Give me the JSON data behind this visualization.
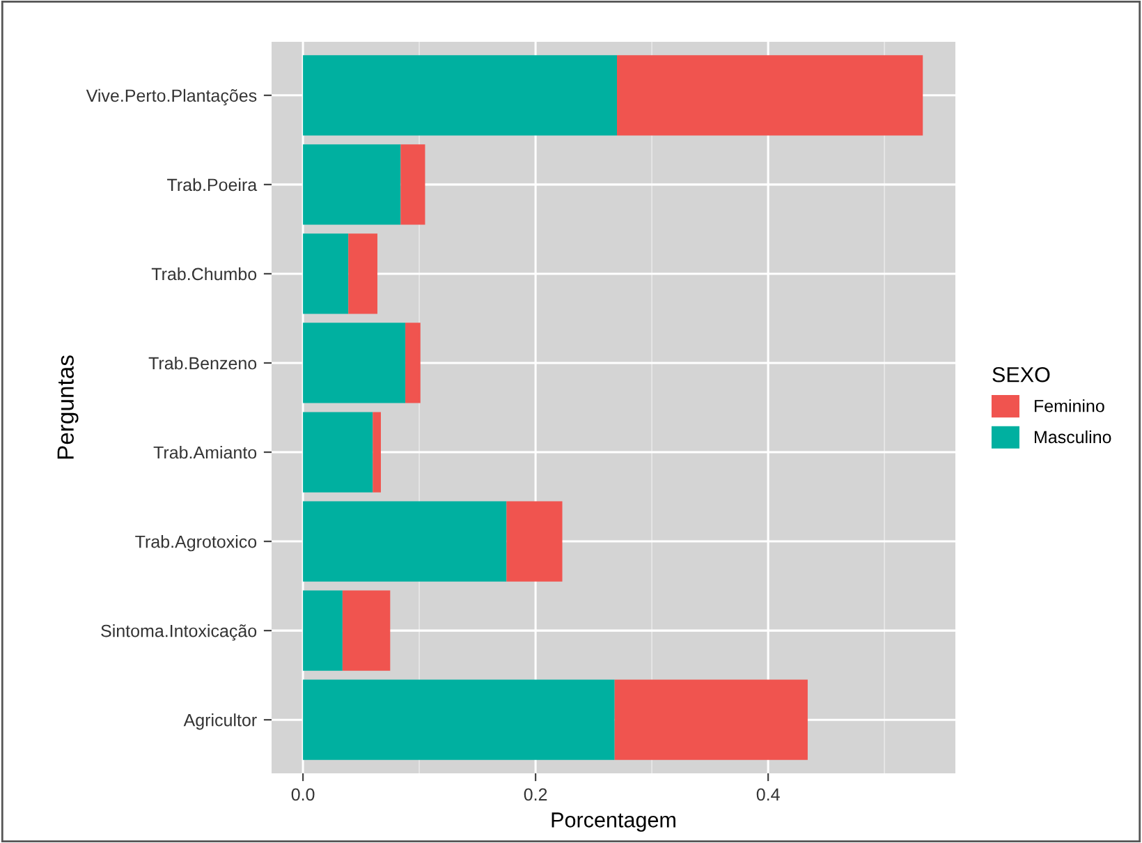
{
  "chart_data": {
    "type": "bar",
    "orientation": "horizontal",
    "stacked": true,
    "xlabel": "Porcentagem",
    "ylabel": "Perguntas",
    "legend_title": "SEXO",
    "legend": "right",
    "grid": true,
    "categories": [
      "Vive.Perto.Plantações",
      "Trab.Poeira",
      "Trab.Chumbo",
      "Trab.Benzeno",
      "Trab.Amianto",
      "Trab.Agrotoxico",
      "Sintoma.Intoxicação",
      "Agricultor"
    ],
    "series": [
      {
        "name": "Masculino",
        "color": "#00b0a0",
        "values": [
          0.27,
          0.084,
          0.039,
          0.088,
          0.06,
          0.175,
          0.034,
          0.268
        ]
      },
      {
        "name": "Feminino",
        "color": "#f0544f",
        "values": [
          0.263,
          0.021,
          0.025,
          0.013,
          0.007,
          0.048,
          0.041,
          0.166
        ]
      }
    ],
    "xlim": [
      -0.027,
      0.561
    ],
    "xticks": [
      {
        "value": 0.0,
        "label": "0.0"
      },
      {
        "value": 0.2,
        "label": "0.2"
      },
      {
        "value": 0.4,
        "label": "0.4"
      }
    ]
  }
}
